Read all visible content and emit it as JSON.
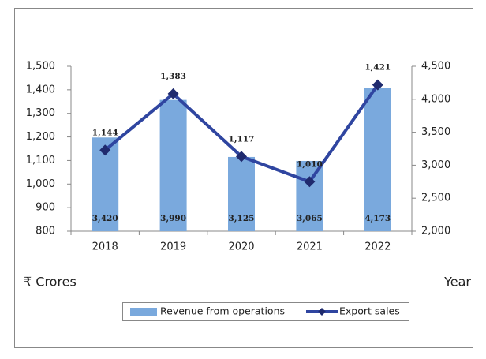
{
  "chart_data": {
    "type": "bar",
    "categories": [
      "2018",
      "2019",
      "2020",
      "2021",
      "2022"
    ],
    "series": [
      {
        "name": "Revenue from operations",
        "type": "bar",
        "axis": "y2",
        "color": "#7aa9dd",
        "values": [
          3420,
          3990,
          3125,
          3065,
          4173
        ],
        "value_labels": [
          "3,420",
          "3,990",
          "3,125",
          "3,065",
          "4,173"
        ]
      },
      {
        "name": "Export sales",
        "type": "line",
        "axis": "y",
        "color": "#2f45a0",
        "values": [
          1144,
          1383,
          1117,
          1010,
          1421
        ],
        "value_labels": [
          "1,144",
          "1,383",
          "1,117",
          "1,010",
          "1,421"
        ]
      }
    ],
    "ylabel": "₹ Crores",
    "xlabel": "Year",
    "ylim": [
      800,
      1500
    ],
    "yticks": [
      800,
      900,
      {
        "value": 1000,
        "label": "1,000"
      },
      {
        "value": 1100,
        "label": "1,100"
      },
      {
        "value": 1200,
        "label": "1,200"
      },
      {
        "value": 1300,
        "label": "1,300"
      },
      {
        "value": 1400,
        "label": "1,400"
      },
      {
        "value": 1500,
        "label": "1,500"
      }
    ],
    "y2lim": [
      2000,
      4500
    ],
    "y2ticks": [
      {
        "value": 2000,
        "label": "2,000"
      },
      {
        "value": 2500,
        "label": "2,500"
      },
      {
        "value": 3000,
        "label": "3,000"
      },
      {
        "value": 3500,
        "label": "3,500"
      },
      {
        "value": 4000,
        "label": "4,000"
      },
      {
        "value": 4500,
        "label": "4,500"
      }
    ],
    "legend": "bottom"
  }
}
